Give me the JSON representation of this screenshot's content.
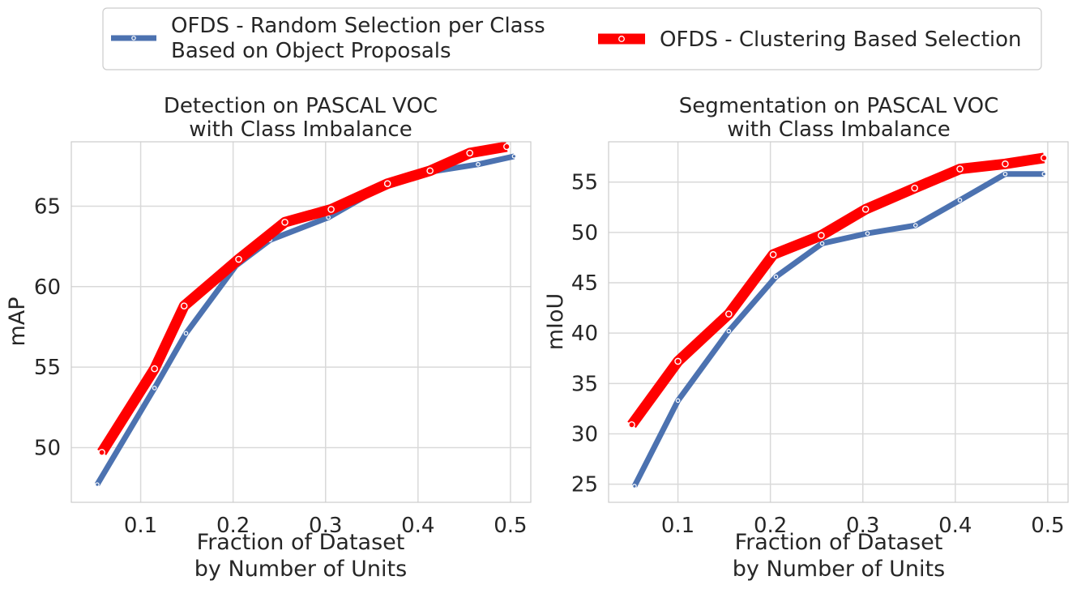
{
  "colors": {
    "blue": "#4c72b0",
    "red": "#ff0000",
    "grid": "#d9d9d9",
    "text": "#262626"
  },
  "legend": {
    "blue_line1": "OFDS - Random Selection per Class",
    "blue_line2": "Based on Object Proposals",
    "red_label": "OFDS - Clustering Based Selection"
  },
  "chart_data": [
    {
      "type": "line",
      "title_line1": "Detection on PASCAL VOC",
      "title_line2": "with Class Imbalance",
      "xlabel_line1": "Fraction of Dataset",
      "xlabel_line2": "by Number of Units",
      "ylabel": "mAP",
      "xlim": [
        0.025,
        0.522
      ],
      "ylim": [
        46.6,
        69.0
      ],
      "xticks": [
        0.1,
        0.2,
        0.3,
        0.4,
        0.5
      ],
      "xtick_labels": [
        "0.1",
        "0.2",
        "0.3",
        "0.4",
        "0.5"
      ],
      "yticks": [
        50,
        55,
        60,
        65
      ],
      "ytick_labels": [
        "50",
        "55",
        "60",
        "65"
      ],
      "series": [
        {
          "name": "OFDS - Random Selection per Class Based on Object Proposals",
          "color": "#4c72b0",
          "x": [
            0.053,
            0.115,
            0.149,
            0.203,
            0.24,
            0.303,
            0.367,
            0.41,
            0.465,
            0.504
          ],
          "y": [
            47.7,
            53.7,
            57.1,
            61.3,
            62.9,
            64.3,
            66.4,
            67.1,
            67.6,
            68.1
          ]
        },
        {
          "name": "OFDS - Clustering Based Selection",
          "color": "#ff0000",
          "x": [
            0.058,
            0.115,
            0.147,
            0.206,
            0.256,
            0.306,
            0.367,
            0.413,
            0.456,
            0.496
          ],
          "y": [
            49.7,
            54.9,
            58.8,
            61.7,
            64.0,
            64.8,
            66.4,
            67.2,
            68.3,
            68.7
          ]
        }
      ]
    },
    {
      "type": "line",
      "title_line1": "Segmentation on PASCAL VOC",
      "title_line2": "with Class Imbalance",
      "xlabel_line1": "Fraction of Dataset",
      "xlabel_line2": "by Number of Units",
      "ylabel": "mIoU",
      "xlim": [
        0.025,
        0.522
      ],
      "ylim": [
        23.2,
        59.0
      ],
      "xticks": [
        0.1,
        0.2,
        0.3,
        0.4,
        0.5
      ],
      "xtick_labels": [
        "0.1",
        "0.2",
        "0.3",
        "0.4",
        "0.5"
      ],
      "yticks": [
        25,
        30,
        35,
        40,
        45,
        50,
        55
      ],
      "ytick_labels": [
        "25",
        "30",
        "35",
        "40",
        "45",
        "50",
        "55"
      ],
      "series": [
        {
          "name": "OFDS - Random Selection per Class Based on Object Proposals",
          "color": "#4c72b0",
          "x": [
            0.053,
            0.1,
            0.155,
            0.206,
            0.256,
            0.305,
            0.357,
            0.405,
            0.454,
            0.496
          ],
          "y": [
            24.8,
            33.3,
            40.2,
            45.6,
            48.9,
            49.9,
            50.7,
            53.2,
            55.8,
            55.8
          ]
        },
        {
          "name": "OFDS - Clustering Based Selection",
          "color": "#ff0000",
          "x": [
            0.05,
            0.1,
            0.155,
            0.203,
            0.255,
            0.303,
            0.356,
            0.405,
            0.454,
            0.496
          ],
          "y": [
            30.9,
            37.2,
            41.9,
            47.8,
            49.7,
            52.3,
            54.4,
            56.3,
            56.8,
            57.4
          ]
        }
      ]
    }
  ]
}
